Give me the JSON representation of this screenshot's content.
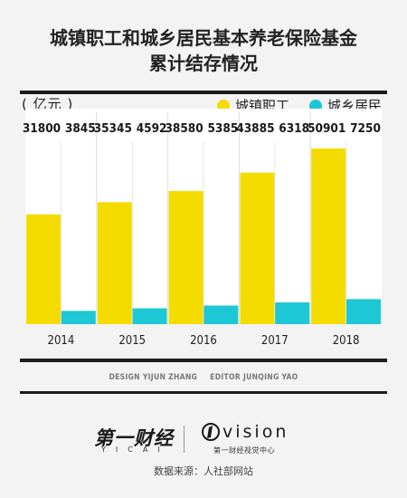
{
  "title_line1": "城镇职工和城乡居民基本养老保险基金",
  "title_line2": "累计结存情况",
  "unit": "( 亿元 )",
  "colors": {
    "urban": "#f5dc00",
    "rural": "#1ec7d6",
    "rule": "#1c1c1c"
  },
  "chart_data": {
    "type": "bar",
    "categories": [
      "2014",
      "2015",
      "2016",
      "2017",
      "2018"
    ],
    "series": [
      {
        "name": "城镇职工",
        "values": [
          31800,
          35345,
          38580,
          43885,
          50901
        ]
      },
      {
        "name": "城乡居民",
        "values": [
          3845,
          4592,
          5385,
          6318,
          7250
        ]
      }
    ],
    "ylabel": "亿元",
    "legend": "top-right",
    "grid": false
  },
  "credits": {
    "design": "DESIGN YIJUN ZHANG",
    "editor": "EDITOR JUNQING YAO"
  },
  "logo_cn": "第一财经",
  "logo_cn_sub": "YICAI",
  "logo_vision": "vision",
  "logo_vision_sub": "第一财经视觉中心",
  "source": "数据来源：人社部网站"
}
